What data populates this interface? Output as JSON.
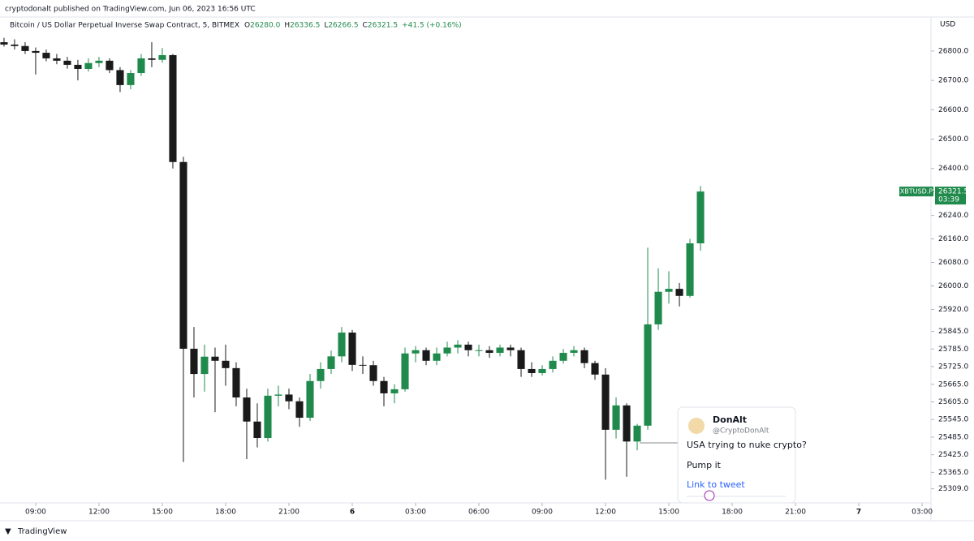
{
  "header": {
    "published": "cryptodonalt published on TradingView.com, Jun 06, 2023 16:56 UTC",
    "instrument": "Bitcoin / US Dollar Perpetual Inverse Swap Contract, 5, BITMEX",
    "ohlc": [
      "O",
      "26280.0",
      "H",
      "26336.5",
      "L",
      "26266.5",
      "C",
      "26321.5"
    ],
    "change": "+41.5 (+0.16%)"
  },
  "chart_data": {
    "type": "candlestick",
    "currency": "USD",
    "up_color": "#1f8a4c",
    "down_color": "#1a1a1a",
    "grid": false,
    "x": [
      7.5,
      8,
      8.5,
      9,
      9.5,
      10,
      10.5,
      11,
      11.5,
      12,
      12.5,
      13,
      13.5,
      14,
      14.5,
      15,
      15.5,
      16,
      16.5,
      17,
      17.5,
      18,
      18.5,
      19,
      19.5,
      20,
      20.5,
      21,
      21.5,
      22,
      22.5,
      23,
      23.5,
      24,
      24.5,
      25,
      25.5,
      26,
      26.5,
      27,
      27.5,
      28,
      28.5,
      29,
      29.5,
      30,
      30.5,
      31,
      31.5,
      32,
      32.5,
      33,
      33.5,
      34,
      34.5,
      35,
      35.5,
      36,
      36.5,
      37,
      37.5,
      38,
      38.5,
      39,
      39.5,
      40,
      40.5
    ],
    "open": [
      26830,
      26822,
      26817,
      26800,
      26794,
      26775,
      26767,
      26753,
      26739,
      26759,
      26767,
      26735,
      26684,
      26725,
      26775,
      26770,
      26786,
      26422,
      25786,
      25700,
      25759,
      25745,
      25720,
      25620,
      25538,
      25482,
      25626,
      25630,
      25607,
      25551,
      25676,
      25717,
      25760,
      25841,
      25731,
      25730,
      25676,
      25634,
      25648,
      25770,
      25781,
      25745,
      25770,
      25790,
      25800,
      25781,
      25781,
      25772,
      25790,
      25781,
      25717,
      25703,
      25717,
      25745,
      25772,
      25781,
      25737,
      25698,
      25510,
      25593,
      25470,
      25524,
      25869,
      25980,
      25990,
      25966,
      26145
    ],
    "high": [
      26845,
      26840,
      26830,
      26812,
      26805,
      26790,
      26780,
      26770,
      26775,
      26780,
      26775,
      26745,
      26735,
      26790,
      26830,
      26810,
      26790,
      26440,
      25860,
      25800,
      25790,
      25800,
      25740,
      25650,
      25600,
      25650,
      25660,
      25650,
      25620,
      25700,
      25740,
      25780,
      25860,
      25850,
      25760,
      25745,
      25690,
      25665,
      25790,
      25795,
      25790,
      25790,
      25810,
      25815,
      25810,
      25800,
      25795,
      25800,
      25800,
      25790,
      25740,
      25730,
      25760,
      25785,
      25795,
      25790,
      25745,
      25720,
      25620,
      25600,
      25530,
      26130,
      26060,
      26050,
      26010,
      26160,
      26340
    ],
    "low": [
      26815,
      26805,
      26790,
      26720,
      26765,
      26755,
      26740,
      26700,
      26730,
      26745,
      26725,
      26660,
      26670,
      26715,
      26745,
      26760,
      26400,
      25400,
      25620,
      25640,
      25570,
      25660,
      25590,
      25410,
      25450,
      25470,
      25590,
      25580,
      25520,
      25540,
      25650,
      25700,
      25740,
      25710,
      25700,
      25660,
      25590,
      25600,
      25640,
      25740,
      25730,
      25730,
      25760,
      25770,
      25760,
      25760,
      25755,
      25760,
      25760,
      25690,
      25690,
      25695,
      25705,
      25735,
      25760,
      25720,
      25680,
      25340,
      25480,
      25350,
      25440,
      25510,
      25850,
      25940,
      25930,
      25960,
      26120
    ],
    "close": [
      26822,
      26817,
      26800,
      26794,
      26775,
      26767,
      26753,
      26739,
      26759,
      26767,
      26735,
      26684,
      26725,
      26775,
      26770,
      26786,
      26422,
      25786,
      25700,
      25759,
      25745,
      25720,
      25620,
      25538,
      25482,
      25626,
      25630,
      25607,
      25551,
      25676,
      25717,
      25760,
      25841,
      25731,
      25730,
      25676,
      25634,
      25648,
      25770,
      25781,
      25745,
      25770,
      25790,
      25800,
      25781,
      25781,
      25772,
      25790,
      25781,
      25717,
      25703,
      25717,
      25745,
      25772,
      25781,
      25737,
      25698,
      25510,
      25593,
      25470,
      25524,
      25869,
      25980,
      25990,
      25966,
      26145,
      26321.5
    ],
    "xlim": [
      7.31,
      51.42
    ],
    "ylim": [
      25261,
      26913
    ],
    "xticks": [
      {
        "value": 9,
        "label": "09:00"
      },
      {
        "value": 12,
        "label": "12:00"
      },
      {
        "value": 15,
        "label": "15:00"
      },
      {
        "value": 18,
        "label": "18:00"
      },
      {
        "value": 21,
        "label": "21:00"
      },
      {
        "value": 24,
        "label": "6"
      },
      {
        "value": 27,
        "label": "03:00"
      },
      {
        "value": 30,
        "label": "06:00"
      },
      {
        "value": 33,
        "label": "09:00"
      },
      {
        "value": 36,
        "label": "12:00"
      },
      {
        "value": 39,
        "label": "15:00"
      },
      {
        "value": 42,
        "label": "18:00"
      },
      {
        "value": 45,
        "label": "21:00"
      },
      {
        "value": 48,
        "label": "7"
      },
      {
        "value": 51,
        "label": "03:00"
      }
    ],
    "yticks": [
      {
        "value": 26800,
        "label": "26800.0"
      },
      {
        "value": 26700,
        "label": "26700.0"
      },
      {
        "value": 26600,
        "label": "26600.0"
      },
      {
        "value": 26500,
        "label": "26500.0"
      },
      {
        "value": 26400,
        "label": "26400.0"
      },
      {
        "value": 26240,
        "label": "26240.0"
      },
      {
        "value": 26160,
        "label": "26160.0"
      },
      {
        "value": 26080,
        "label": "26080.0"
      },
      {
        "value": 26000,
        "label": "26000.0"
      },
      {
        "value": 25920,
        "label": "25920.0"
      },
      {
        "value": 25845,
        "label": "25845.0"
      },
      {
        "value": 25785,
        "label": "25785.0"
      },
      {
        "value": 25725,
        "label": "25725.0"
      },
      {
        "value": 25665,
        "label": "25665.0"
      },
      {
        "value": 25605,
        "label": "25605.0"
      },
      {
        "value": 25545,
        "label": "25545.0"
      },
      {
        "value": 25485,
        "label": "25485.0"
      },
      {
        "value": 25425,
        "label": "25425.0"
      },
      {
        "value": 25365,
        "label": "25365.0"
      },
      {
        "value": 25309,
        "label": "25309.0"
      }
    ],
    "last_price": {
      "symbol": "XBTUSD.P",
      "value": 26321.5,
      "countdown": "03:39",
      "color": "#1f8a4c"
    }
  },
  "tweet": {
    "name": "DonAlt",
    "handle": "@CryptoDonAlt",
    "lines": [
      "USA trying to nuke crypto?",
      "Pump it"
    ],
    "link": "Link to tweet"
  },
  "footer": {
    "brand": "TradingView"
  }
}
